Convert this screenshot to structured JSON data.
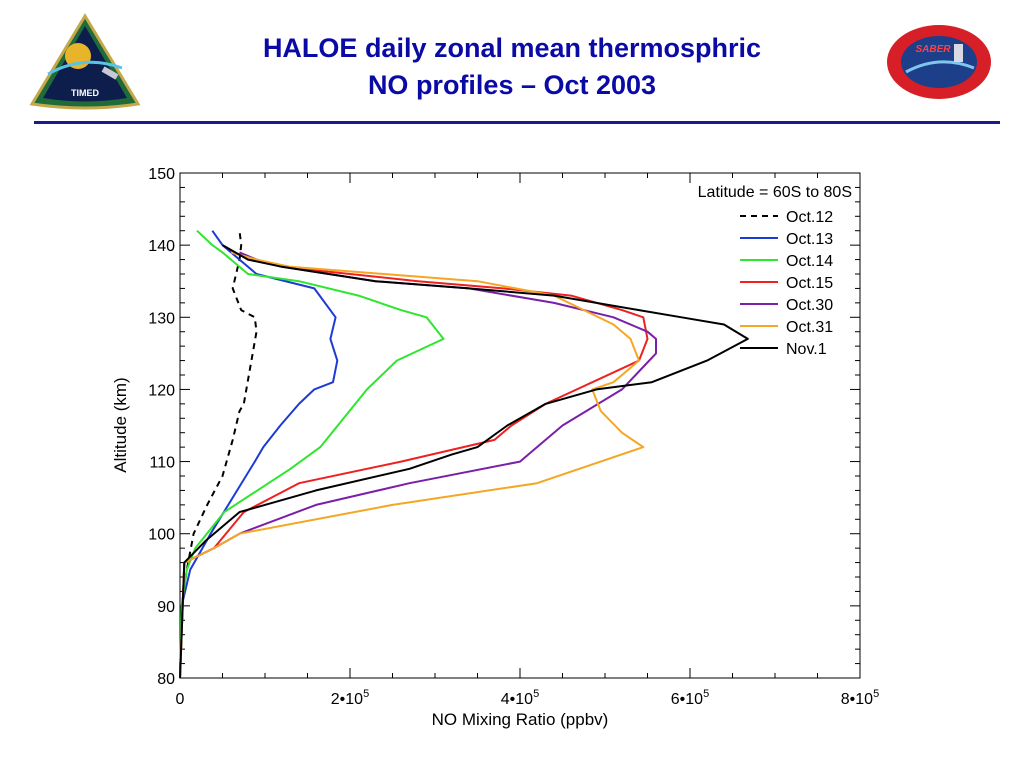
{
  "header": {
    "title_line1": "HALOE daily zonal mean thermosphric",
    "title_line2": "NO profiles – Oct 2003",
    "left_logo_text": "TIMED",
    "right_logo_text": "SABER",
    "title_color": "#0a0aa5",
    "rule_color": "#1b1b8f"
  },
  "chart_data": {
    "type": "line",
    "title": "",
    "xlabel": "NO Mixing Ratio (ppbv)",
    "ylabel": "Altitude (km)",
    "xlim": [
      0,
      800000
    ],
    "ylim": [
      80,
      150
    ],
    "xticks": [
      {
        "value": 0,
        "mant": "0",
        "exp": ""
      },
      {
        "value": 200000,
        "mant": "2•10",
        "exp": "5"
      },
      {
        "value": 400000,
        "mant": "4•10",
        "exp": "5"
      },
      {
        "value": 600000,
        "mant": "6•10",
        "exp": "5"
      },
      {
        "value": 800000,
        "mant": "8•10",
        "exp": "5"
      }
    ],
    "yticks": [
      "80",
      "90",
      "100",
      "110",
      "120",
      "130",
      "140",
      "150"
    ],
    "legend_title": "Latitude = 60S to 80S",
    "legend_position": "top-right",
    "series": [
      {
        "name": "Oct.12",
        "color": "#000000",
        "dash": true,
        "x": [
          0,
          2000,
          8000,
          16000,
          32000,
          50000,
          62000,
          70000,
          75000,
          90000,
          88000,
          72000,
          62000,
          66000,
          70000,
          72000,
          70000
        ],
        "y": [
          80,
          90,
          95,
          100,
          104,
          108,
          113,
          117,
          118,
          128,
          130,
          131,
          134,
          136,
          138,
          140,
          142
        ]
      },
      {
        "name": "Oct.13",
        "color": "#1c3bd6",
        "dash": false,
        "x": [
          0,
          2000,
          12000,
          36000,
          88000,
          98000,
          118000,
          140000,
          158000,
          180000,
          185000,
          177000,
          183000,
          158000,
          90000,
          70000,
          50000,
          38000
        ],
        "y": [
          80,
          90,
          95,
          100,
          110,
          112,
          115,
          118,
          120,
          121,
          124,
          127,
          130,
          134,
          136,
          138,
          140,
          142
        ]
      },
      {
        "name": "Oct.14",
        "color": "#2ee62e",
        "dash": false,
        "x": [
          0,
          2000,
          8000,
          18000,
          52000,
          130000,
          165000,
          220000,
          255000,
          310000,
          290000,
          260000,
          210000,
          140000,
          80000,
          50000,
          38000,
          20000
        ],
        "y": [
          80,
          90,
          95,
          98,
          103,
          109,
          112,
          120,
          124,
          127,
          130,
          131,
          133,
          135,
          136,
          139,
          140,
          142
        ]
      },
      {
        "name": "Oct.15",
        "color": "#ee2020",
        "dash": false,
        "x": [
          0,
          5000,
          40000,
          75000,
          140000,
          260000,
          370000,
          390000,
          430000,
          540000,
          550000,
          545000,
          520000,
          460000,
          380000,
          280000,
          200000,
          120000,
          90000,
          60000
        ],
        "y": [
          80,
          96,
          98,
          103,
          107,
          110,
          113,
          115,
          118,
          124,
          127,
          130,
          131,
          133,
          134,
          135,
          136,
          137,
          138,
          139
        ]
      },
      {
        "name": "Oct.30",
        "color": "#7a1fa8",
        "dash": false,
        "x": [
          0,
          5000,
          40000,
          70000,
          160000,
          270000,
          400000,
          420000,
          450000,
          520000,
          560000,
          560000,
          550000,
          510000,
          440000,
          340000,
          230000,
          120000,
          90000,
          70000
        ],
        "y": [
          80,
          96,
          98,
          100,
          104,
          107,
          110,
          112,
          115,
          120,
          125,
          127,
          128,
          130,
          132,
          134,
          135,
          137,
          138,
          139
        ]
      },
      {
        "name": "Oct.31",
        "color": "#f5a623",
        "dash": false,
        "x": [
          0,
          5000,
          40000,
          70000,
          250000,
          420000,
          545000,
          520000,
          495000,
          485000,
          510000,
          540000,
          530000,
          510000,
          440000,
          350000,
          240000,
          130000,
          90000,
          60000
        ],
        "y": [
          80,
          96,
          98,
          100,
          104,
          107,
          112,
          114,
          117,
          120,
          121,
          124,
          127,
          129,
          133,
          135,
          136,
          137,
          138,
          139
        ]
      },
      {
        "name": "Nov.1",
        "color": "#000000",
        "dash": false,
        "x": [
          0,
          5000,
          30000,
          70000,
          160000,
          270000,
          320000,
          350000,
          385000,
          430000,
          490000,
          555000,
          620000,
          668000,
          640000,
          590000,
          540000,
          440000,
          340000,
          230000,
          120000,
          80000,
          50000
        ],
        "y": [
          80,
          96,
          99,
          103,
          106,
          109,
          111,
          112,
          115,
          118,
          120,
          121,
          124,
          127,
          129,
          130,
          131,
          133,
          134,
          135,
          137,
          138,
          140
        ]
      }
    ]
  }
}
